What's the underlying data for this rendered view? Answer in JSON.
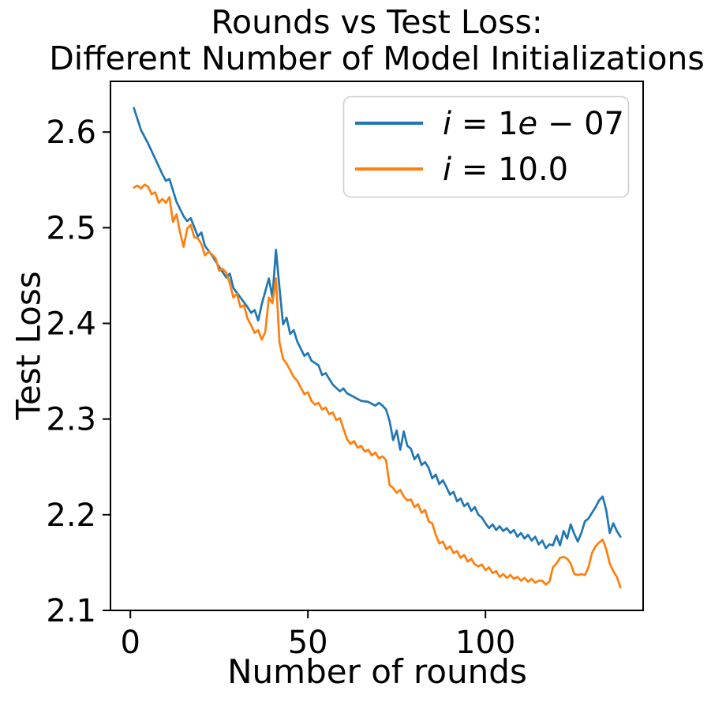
{
  "chart_data": {
    "type": "line",
    "title": "Rounds vs Test Loss:\nDifferent Number of Model Initializations",
    "xlabel": "Number of rounds",
    "ylabel": "Test Loss",
    "xlim": [
      -5.6,
      144.4
    ],
    "ylim": [
      2.1,
      2.653
    ],
    "grid": false,
    "background": "#ffffff",
    "x_ticks": [
      0,
      50,
      100
    ],
    "x_tick_labels": [
      "0",
      "50",
      "100"
    ],
    "y_ticks": [
      2.1,
      2.2,
      2.3,
      2.4,
      2.5,
      2.6
    ],
    "y_tick_labels": [
      "2.1",
      "2.2",
      "2.3",
      "2.4",
      "2.5",
      "2.6"
    ],
    "legend": {
      "position": "upper right",
      "border_color": "#cccccc"
    },
    "series": [
      {
        "name": "i = 1e-07",
        "color": "#1f77b4",
        "label_segments": [
          {
            "text": "i",
            "italic": true
          },
          {
            "text": " = 1",
            "italic": false
          },
          {
            "text": "e",
            "italic": true
          },
          {
            "text": " − 07",
            "italic": false
          }
        ],
        "x": [
          1,
          3,
          5,
          7,
          9,
          10,
          11,
          13,
          15,
          16,
          17,
          19,
          20,
          21,
          23,
          25,
          27,
          28,
          29,
          31,
          33,
          34,
          35,
          36,
          37,
          39,
          40,
          41,
          42,
          43,
          44,
          45,
          46,
          47,
          49,
          50,
          51,
          53,
          54,
          55,
          57,
          59,
          60,
          61,
          63,
          65,
          67,
          69,
          70,
          71,
          72,
          73,
          74,
          75,
          76,
          77,
          78,
          79,
          80,
          81,
          82,
          83,
          84,
          85,
          86,
          87,
          88,
          89,
          90,
          91,
          92,
          93,
          94,
          95,
          96,
          97,
          98,
          99,
          100,
          101,
          102,
          103,
          104,
          105,
          106,
          107,
          108,
          109,
          110,
          111,
          112,
          113,
          114,
          115,
          116,
          117,
          118,
          119,
          120,
          121,
          122,
          123,
          124,
          125,
          126,
          127,
          128,
          129,
          130,
          131,
          132,
          133,
          134,
          135,
          136,
          137,
          138
        ],
        "y": [
          2.625,
          2.602,
          2.588,
          2.572,
          2.556,
          2.549,
          2.551,
          2.527,
          2.512,
          2.507,
          2.51,
          2.491,
          2.495,
          2.481,
          2.471,
          2.459,
          2.448,
          2.452,
          2.437,
          2.427,
          2.417,
          2.411,
          2.414,
          2.403,
          2.42,
          2.447,
          2.427,
          2.477,
          2.437,
          2.399,
          2.406,
          2.389,
          2.393,
          2.381,
          2.366,
          2.369,
          2.361,
          2.356,
          2.346,
          2.348,
          2.336,
          2.329,
          2.332,
          2.327,
          2.323,
          2.319,
          2.318,
          2.314,
          2.317,
          2.314,
          2.31,
          2.298,
          2.278,
          2.288,
          2.268,
          2.287,
          2.272,
          2.269,
          2.258,
          2.263,
          2.252,
          2.255,
          2.249,
          2.238,
          2.242,
          2.232,
          2.236,
          2.229,
          2.221,
          2.224,
          2.214,
          2.217,
          2.209,
          2.212,
          2.204,
          2.208,
          2.2,
          2.197,
          2.191,
          2.186,
          2.19,
          2.184,
          2.188,
          2.183,
          2.186,
          2.181,
          2.184,
          2.177,
          2.181,
          2.175,
          2.179,
          2.173,
          2.177,
          2.169,
          2.173,
          2.165,
          2.169,
          2.168,
          2.178,
          2.168,
          2.183,
          2.175,
          2.19,
          2.18,
          2.172,
          2.181,
          2.193,
          2.196,
          2.202,
          2.208,
          2.215,
          2.219,
          2.205,
          2.181,
          2.191,
          2.183,
          2.177
        ]
      },
      {
        "name": "i = 10.0",
        "color": "#ff7f0e",
        "label_segments": [
          {
            "text": "i",
            "italic": true
          },
          {
            "text": " = 10.0",
            "italic": false
          }
        ],
        "x": [
          1,
          2,
          3,
          4,
          5,
          6,
          7,
          8,
          9,
          10,
          11,
          12,
          13,
          14,
          15,
          16,
          17,
          18,
          19,
          20,
          21,
          22,
          23,
          24,
          25,
          26,
          27,
          28,
          29,
          30,
          31,
          32,
          33,
          34,
          35,
          36,
          37,
          38,
          39,
          40,
          41,
          42,
          43,
          44,
          45,
          46,
          47,
          48,
          49,
          50,
          51,
          52,
          53,
          54,
          55,
          56,
          57,
          58,
          59,
          60,
          61,
          62,
          63,
          64,
          65,
          66,
          67,
          68,
          69,
          70,
          71,
          72,
          73,
          74,
          75,
          76,
          77,
          78,
          79,
          80,
          81,
          82,
          83,
          84,
          85,
          86,
          87,
          88,
          89,
          90,
          91,
          92,
          93,
          94,
          95,
          96,
          97,
          98,
          99,
          100,
          101,
          102,
          103,
          104,
          105,
          106,
          107,
          108,
          109,
          110,
          111,
          112,
          113,
          114,
          115,
          116,
          117,
          118,
          119,
          120,
          121,
          122,
          123,
          124,
          125,
          126,
          127,
          128,
          129,
          130,
          131,
          132,
          133,
          134,
          135,
          136,
          137,
          138
        ],
        "y": [
          2.542,
          2.544,
          2.541,
          2.545,
          2.543,
          2.535,
          2.537,
          2.526,
          2.53,
          2.526,
          2.532,
          2.506,
          2.514,
          2.495,
          2.48,
          2.499,
          2.503,
          2.49,
          2.489,
          2.483,
          2.471,
          2.475,
          2.472,
          2.468,
          2.455,
          2.457,
          2.453,
          2.442,
          2.427,
          2.431,
          2.417,
          2.419,
          2.405,
          2.398,
          2.39,
          2.393,
          2.383,
          2.391,
          2.427,
          2.421,
          2.447,
          2.38,
          2.363,
          2.358,
          2.351,
          2.344,
          2.34,
          2.333,
          2.326,
          2.328,
          2.319,
          2.315,
          2.317,
          2.31,
          2.312,
          2.305,
          2.307,
          2.299,
          2.301,
          2.29,
          2.279,
          2.274,
          2.277,
          2.27,
          2.272,
          2.266,
          2.268,
          2.262,
          2.265,
          2.259,
          2.261,
          2.257,
          2.231,
          2.228,
          2.223,
          2.226,
          2.219,
          2.215,
          2.216,
          2.208,
          2.211,
          2.202,
          2.205,
          2.193,
          2.191,
          2.179,
          2.17,
          2.172,
          2.164,
          2.167,
          2.16,
          2.162,
          2.155,
          2.158,
          2.151,
          2.154,
          2.148,
          2.146,
          2.148,
          2.142,
          2.145,
          2.139,
          2.141,
          2.135,
          2.138,
          2.134,
          2.137,
          2.133,
          2.135,
          2.131,
          2.134,
          2.13,
          2.133,
          2.129,
          2.131,
          2.131,
          2.127,
          2.13,
          2.145,
          2.149,
          2.155,
          2.156,
          2.154,
          2.149,
          2.138,
          2.137,
          2.138,
          2.137,
          2.145,
          2.16,
          2.167,
          2.171,
          2.174,
          2.164,
          2.149,
          2.141,
          2.135,
          2.124
        ]
      }
    ]
  }
}
